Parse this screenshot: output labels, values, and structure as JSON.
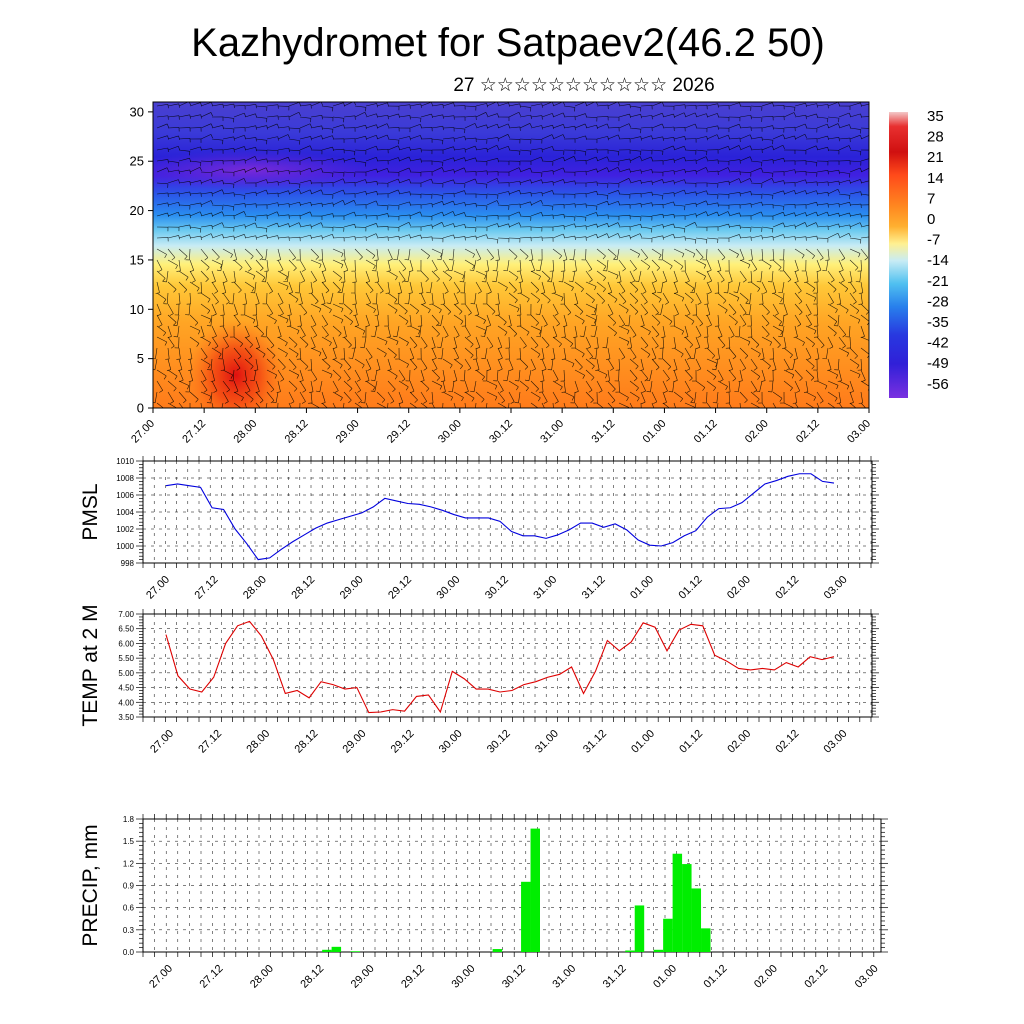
{
  "header": {
    "title": "Kazhydromet for Satpaev2(46.2 50)",
    "subtitle": "27 ☆☆☆☆☆☆☆☆☆☆☆ 2026"
  },
  "time_ticks": [
    "27.00",
    "27.12",
    "28.00",
    "28.12",
    "29.00",
    "29.12",
    "30.00",
    "30.12",
    "31.00",
    "31.12",
    "01.00",
    "01.12",
    "02.00",
    "02.12",
    "03.00"
  ],
  "chart_data": [
    {
      "type": "heatmap",
      "title": "",
      "xlabel": "",
      "ylabel": "",
      "y_ticks": [
        0,
        5,
        10,
        15,
        20,
        25,
        30
      ],
      "ylim": [
        0,
        31
      ],
      "colorbar_labels": [
        "35",
        "28",
        "21",
        "14",
        "7",
        "0",
        "-7",
        "-14",
        "-21",
        "-28",
        "-35",
        "-42",
        "-49",
        "-56"
      ],
      "overlay": "wind barbs",
      "grid": false
    },
    {
      "type": "line",
      "ylabel": "PMSL",
      "ylim": [
        998,
        1010
      ],
      "y_ticks": [
        "1010",
        "1008",
        "1006",
        "1004",
        "1002",
        "1000",
        "998"
      ],
      "color": "#0000dd",
      "grid": true,
      "values": [
        1007.1,
        1007.3,
        1007.1,
        1006.9,
        1004.5,
        1004.3,
        1002,
        1000.3,
        998.4,
        998.6,
        999.6,
        1000.5,
        1001.3,
        1002.1,
        1002.7,
        1003.1,
        1003.5,
        1003.9,
        1004.6,
        1005.6,
        1005.3,
        1005.0,
        1004.9,
        1004.6,
        1004.2,
        1003.7,
        1003.3,
        1003.3,
        1003.3,
        1002.9,
        1001.7,
        1001.2,
        1001.2,
        1000.9,
        1001.3,
        1001.9,
        1002.7,
        1002.7,
        1002.2,
        1002.6,
        1001.9,
        1000.7,
        1000.1,
        1000.0,
        1000.4,
        1001.2,
        1001.8,
        1003.4,
        1004.4,
        1004.5,
        1005.1,
        1006.2,
        1007.3,
        1007.7,
        1008.2,
        1008.5,
        1008.5,
        1007.6,
        1007.4
      ]
    },
    {
      "type": "line",
      "ylabel": "TEMP at 2 M",
      "ylim": [
        3.5,
        7.0
      ],
      "y_ticks": [
        "7.00",
        "6.50",
        "6.00",
        "5.50",
        "5.00",
        "4.50",
        "4.00",
        "3.50"
      ],
      "color": "#dd0000",
      "grid": true,
      "values": [
        6.3,
        4.9,
        4.45,
        4.35,
        4.85,
        6.0,
        6.6,
        6.75,
        6.25,
        5.45,
        4.3,
        4.4,
        4.15,
        4.7,
        4.6,
        4.45,
        4.5,
        3.65,
        3.67,
        3.75,
        3.7,
        4.2,
        4.25,
        3.67,
        5.05,
        4.8,
        4.45,
        4.45,
        4.35,
        4.4,
        4.6,
        4.7,
        4.85,
        4.95,
        5.2,
        4.3,
        5.05,
        6.1,
        5.75,
        6.05,
        6.7,
        6.55,
        5.75,
        6.45,
        6.65,
        6.6,
        5.6,
        5.4,
        5.15,
        5.1,
        5.15,
        5.1,
        5.35,
        5.2,
        5.55,
        5.45,
        5.55
      ]
    },
    {
      "type": "bar",
      "ylabel": "PRECIP, mm",
      "ylim": [
        0,
        1.8
      ],
      "y_ticks": [
        "1.8",
        "1.5",
        "1.2",
        "0.9",
        "0.6",
        "0.3",
        "0.0"
      ],
      "color": "#00ee00",
      "grid": true,
      "values": [
        0,
        0,
        0,
        0,
        0,
        0,
        0,
        0,
        0,
        0,
        0,
        0,
        0,
        0.03,
        0.07,
        0,
        0.01,
        0,
        0,
        0,
        0,
        0,
        0,
        0,
        0,
        0,
        0,
        0,
        0,
        0,
        0,
        0.04,
        0,
        0,
        0.95,
        1.67,
        0,
        0,
        0,
        0,
        0,
        0,
        0,
        0,
        0,
        0.02,
        0.63,
        0,
        0.03,
        0.45,
        1.33,
        1.19,
        0.86,
        0.32,
        0,
        0,
        0,
        0,
        0,
        0,
        0,
        0,
        0,
        0,
        0,
        0,
        0,
        0,
        0,
        0,
        0,
        0
      ]
    }
  ]
}
